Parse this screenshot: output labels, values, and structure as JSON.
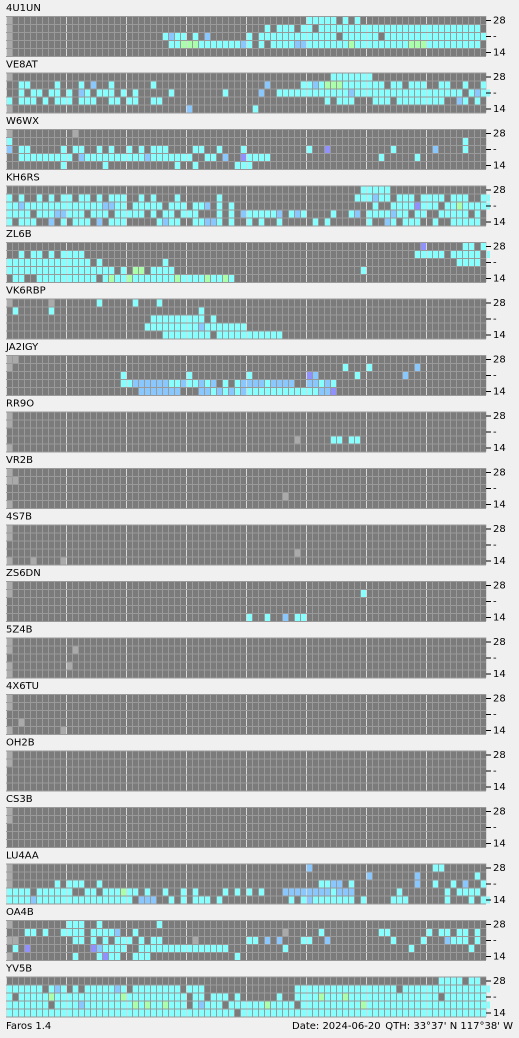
{
  "stations": [
    {
      "name": "4U1UN",
      "rows": [
        "w.................................................ccccc.c.c",
        "w..........................................c.ccc.cc.ccccccccccccccccccccccccccc",
        "w.........................cbcc.c.b......c.ccccccccccccc.cccccc.ccccccccccccccccc",
        "w..........................ccgggcccccccbc.c.ccccbbcccccccgcccccccccgggccccccccc",
        "w"
      ]
    },
    {
      "name": "VE8AT",
      "rows": [
        "w.....................................................ccccccc",
        "..cc....c...c.b..c......c..................b.....ccbcgggccccccc.cc.ccc..cc..c..c",
        "..c.cc.cc.c.bc.ccc.c.c.....c........c.....b..ccccccccccccbcccccccccccccccccc.cbcc",
        "c.ccc.c.ccc.ccc..cc.cc..cc...........................c.ccc...ccc.cccccccc..bc.c",
        "w.............................b..........c"
      ]
    },
    {
      "name": "W6WX",
      "rows": [
        "w..........w",
        "c...........................................................................c.",
        "b.cc.....c.cc..c.c..c.c.ccc....cc..c...c..........c..p..........c......b....c",
        "..ccccccccc.bccccccccccbccccccc..cc.b..pcccc..................c.....c.....",
        ".........c......c...........c..c......ccc"
      ]
    },
    {
      "name": "KH6RS",
      "rows": [
        "...........................................................ccccc",
        "c.c..c.c.cc.cc.c.ccc..c.c...c......c......................cccbcc.ccc.cccc.ccc..cc",
        "ccbcccccccccccccbbcc.ccccc.ccc.ccb.c.c.......................c..ccccpccc.ccgccccc",
        "cccc.cccbbccc.ccc.ccccc.c.cc.ccc...c.c.bcccccb.cbc....c..cb.ccccbcc.cc..ccccc.c.",
        "c.ccc..b.c.ccc.b.ccc.....cbcc..ccbbc.c..c.c..c.....c.c......c..bc.ccc..c..ccccc"
      ]
    },
    {
      "name": "ZL6B",
      "rows": [
        ".....................................................................p......cc.c",
        "..c.cc.c.cccc.......................................................ccccc.ccccc.c",
        "cccccccccccccc.c..........c................................................cccc.",
        "cccccccccccccccccc.c.gg.cccc...............................c",
        ".cc..cccccccccc.cgccgcccccccgccccgccgc"
      ]
    },
    {
      "name": "VK6RBP",
      "rows": [
        "w......w.......c.....c...c",
        ".c.....c........................c",
        "........................ccccccccc.c",
        ".......................cccccccccbccccccc",
        "..........................cccccccc.ccccccccccc"
      ]
    },
    {
      "name": "JA2IGY",
      "rows": [
        "ww",
        "w.......................................................c...c.......b",
        "...................c..........c.........c.........pb......c.......b",
        "...................ccbbbbbbccbccbcb.c.cbbbbcbbbb..bbcbc",
        "......................bbbbbbb...bbcbcbcbccccccccccccbbp"
      ]
    },
    {
      "name": "RR9O",
      "rows": [
        "w",
        "w",
        "",
        "................................................w.....cc.cc",
        "w"
      ]
    },
    {
      "name": "VR2B",
      "rows": [
        "w",
        "ww",
        "",
        "..............................................w",
        "w"
      ]
    },
    {
      "name": "4S7B",
      "rows": [
        "w",
        "w",
        "",
        "................................................w",
        "w...w....w"
      ]
    },
    {
      "name": "ZS6DN",
      "rows": [
        "w",
        "w..........................................................c",
        "",
        "",
        "........................................c..c..b.cc"
      ]
    },
    {
      "name": "5Z4B",
      "rows": [
        "w",
        "w..........w",
        "",
        "w.........w",
        "w"
      ]
    },
    {
      "name": "4X6TU",
      "rows": [
        "w",
        "w",
        "",
        "..w",
        "w........w"
      ]
    },
    {
      "name": "OH2B",
      "rows": [
        "w",
        "w",
        "",
        "",
        ""
      ]
    },
    {
      "name": "CS3B",
      "rows": [
        "w",
        "w",
        "",
        "",
        ""
      ]
    },
    {
      "name": "LU4AA",
      "rows": [
        "w.................................................b....................cc",
        "w...........................................................b.......b.........c",
        "w.......c.ccc..c....................................ccbb.c..........b..c..c.b..c",
        "cccc.cccccc..cc.cccgcc.c..c..c.c....c.c.c.c...bbbbbbbbcbbb.......c.......c.cccc.",
        "ccccbcccccccccccccccc.bbb..c.c.ccc.c...........c.cbccccccc.c....ccc......c...c.cc"
      ]
    },
    {
      "name": "OA4B",
      "rows": [
        "w.........ccc..c.........c",
        "...cc.c..cccc.ccccb..c........................w.....c.........cc......c.cc.cc.c",
        "ww.........cc.c.c.ccc.c.cc.....w........cc.b.b...cc..b..........c....c...bccc.c",
        ".c.p..........pbcccc..ccccccccccccccc.........c....................c.........c",
        "w..........c...cpcc..ccc..............c"
      ]
    },
    {
      "name": "YV5B",
      "rows": [
        "........................................................................cccc.cc",
        "cccccc.cbc.c.cccccbc.cccccccc.ccc...............ccccccccccccccccc.ccccccccccccccc",
        "c.cccccgcccccccccccgcccccccccc.cc.ccc.c......c..ccccgcccgccccccccccccccc.ccccccc",
        "ccccccc.ccccbccccccccgcgccgccc.cbccc.ccccccgcccc.ccccccccccgccccccccccccccccccccc",
        "cccccccccccccccccccccccccccccccccccccc.ccccccccccccccccccccccccccccccccccccccccc"
      ]
    }
  ],
  "axis_labels": [
    "28",
    "-",
    "14"
  ],
  "cell_colors": {
    "w": "#aaaaaa",
    "c": "#88ffff",
    "b": "#88c8ff",
    "p": "#9090ff",
    "g": "#aaffaa"
  },
  "footer": {
    "app": "Faros 1.4",
    "date": "Date: 2024-06-20",
    "qth": "QTH: 33°37' N  117°38' W"
  }
}
